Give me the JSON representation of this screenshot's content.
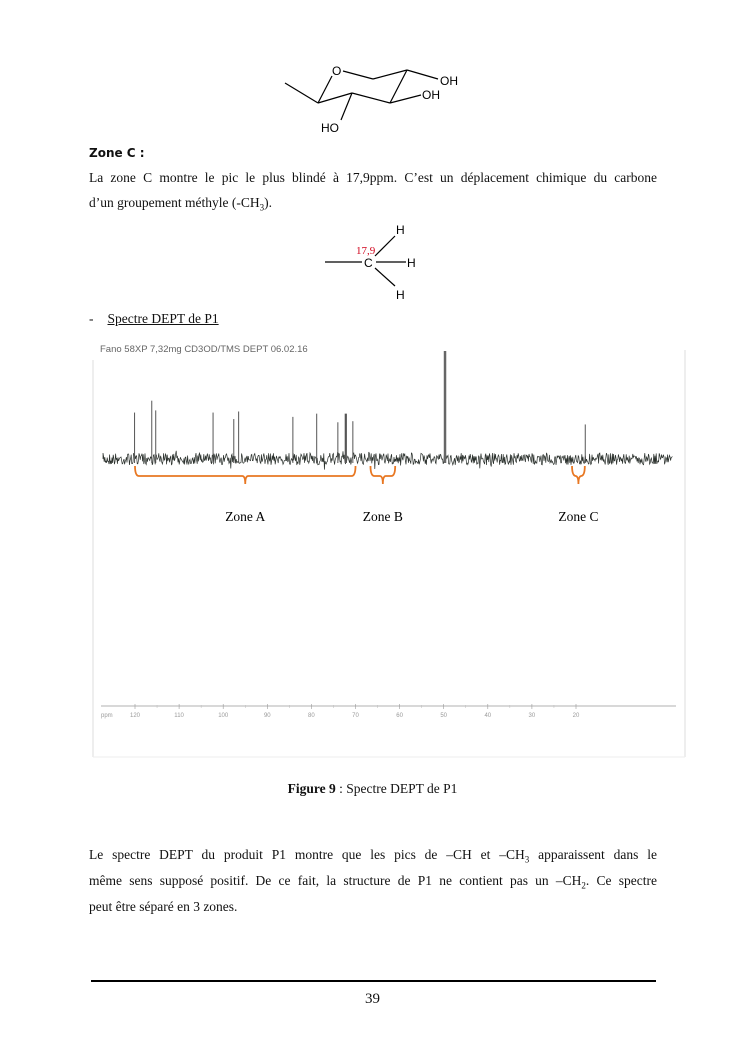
{
  "molecule1": {
    "atoms": {
      "O": "O",
      "OH1": "OH",
      "OH2": "OH",
      "HO": "HO"
    }
  },
  "zone_c": {
    "title": "Zone C :",
    "line1": "La zone C montre le pic le plus blindé à 17,9ppm. C’est un déplacement chimique du carbone",
    "line2_pre": "d’un groupement méthyle (-CH",
    "line2_sub": "3",
    "line2_post": ")."
  },
  "molecule2": {
    "carbon": "C",
    "h_top": "H",
    "h_right": "H",
    "h_bottom": "H",
    "shift_label": "17,9",
    "shift_color": "#d0021b"
  },
  "section": {
    "bullet": "-",
    "title": "Spectre DEPT de P1"
  },
  "chart_data": {
    "type": "line",
    "title": "Fano 58XP 7,32mg CD3OD/TMS DEPT 06.02.16",
    "xlabel": "ppm",
    "x_ticks": [
      120,
      110,
      100,
      90,
      80,
      70,
      60,
      50,
      40,
      30,
      20
    ],
    "xlim": [
      120,
      20
    ],
    "x_reversed": true,
    "peaks": [
      {
        "ppm": 120.1,
        "intensity": 43
      },
      {
        "ppm": 116.2,
        "intensity": 54
      },
      {
        "ppm": 115.3,
        "intensity": 45
      },
      {
        "ppm": 102.3,
        "intensity": 43
      },
      {
        "ppm": 97.6,
        "intensity": 37
      },
      {
        "ppm": 96.5,
        "intensity": 44
      },
      {
        "ppm": 84.2,
        "intensity": 39
      },
      {
        "ppm": 78.8,
        "intensity": 42
      },
      {
        "ppm": 74.0,
        "intensity": 34
      },
      {
        "ppm": 72.2,
        "intensity": 42
      },
      {
        "ppm": 70.6,
        "intensity": 35
      },
      {
        "ppm": 49.7,
        "intensity": 100
      },
      {
        "ppm": 17.9,
        "intensity": 32
      }
    ],
    "zones": [
      {
        "label": "Zone A",
        "from": 120,
        "to": 70
      },
      {
        "label": "Zone B",
        "from": 66.6,
        "to": 61
      },
      {
        "label": "Zone C",
        "from": 20.9,
        "to": 18
      }
    ],
    "bracket_color": "#e87722"
  },
  "figure": {
    "label": "Figure 9",
    "caption": " : Spectre DEPT de P1"
  },
  "conclusion": {
    "l1_a": "Le spectre DEPT du produit P1 montre que les pics de –CH et –CH",
    "l1_sub": "3",
    "l1_b": " apparaissent dans le",
    "l2_a": "même sens supposé positif. De ce fait, la structure de P1 ne contient pas un –CH",
    "l2_sub": "2",
    "l2_b": ". Ce spectre",
    "l3": "peut être séparé en 3 zones."
  },
  "footer": {
    "page_number": "39"
  }
}
